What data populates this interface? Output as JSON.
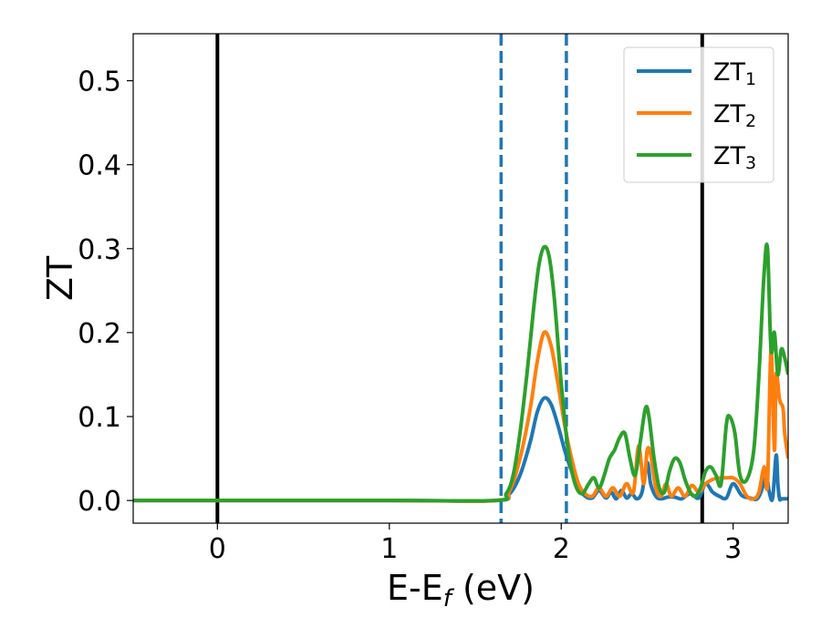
{
  "chart_data": {
    "type": "line",
    "xlabel": "E-E",
    "xlabel_sub": "f",
    "xlabel_unit": " (eV)",
    "ylabel": "ZT",
    "xlim": [
      -0.49,
      3.32
    ],
    "ylim": [
      -0.027,
      0.556
    ],
    "xticks": [
      0,
      1,
      2,
      3
    ],
    "xtick_labels": [
      "0",
      "1",
      "2",
      "3"
    ],
    "yticks": [
      0.0,
      0.1,
      0.2,
      0.3,
      0.4,
      0.5
    ],
    "ytick_labels": [
      "0.0",
      "0.1",
      "0.2",
      "0.3",
      "0.4",
      "0.5"
    ],
    "grid": false,
    "legend_position": "top-right",
    "vlines": [
      {
        "x": 0.0,
        "style": "solid",
        "color": "#000000"
      },
      {
        "x": 1.65,
        "style": "dashed",
        "color": "#1f77b4"
      },
      {
        "x": 2.03,
        "style": "dashed",
        "color": "#1f77b4"
      },
      {
        "x": 2.82,
        "style": "solid",
        "color": "#000000"
      }
    ],
    "series": [
      {
        "name": "ZT",
        "name_sub": "1",
        "color": "#1f77b4",
        "x": [
          -0.49,
          1.0,
          1.62,
          1.7,
          1.76,
          1.82,
          1.86,
          1.9,
          1.94,
          1.98,
          2.02,
          2.06,
          2.1,
          2.14,
          2.18,
          2.22,
          2.26,
          2.29,
          2.32,
          2.35,
          2.38,
          2.41,
          2.44,
          2.47,
          2.5,
          2.52,
          2.55,
          2.58,
          2.62,
          2.66,
          2.7,
          2.75,
          2.8,
          2.84,
          2.88,
          2.92,
          2.96,
          3.0,
          3.05,
          3.1,
          3.14,
          3.17,
          3.19,
          3.21,
          3.23,
          3.25,
          3.26,
          3.27,
          3.28,
          3.3,
          3.32
        ],
        "y": [
          0,
          0,
          0,
          0.008,
          0.03,
          0.07,
          0.105,
          0.122,
          0.115,
          0.09,
          0.06,
          0.035,
          0.015,
          0.005,
          0.003,
          0.012,
          0.003,
          0.01,
          0.002,
          0.012,
          0.003,
          0.008,
          0.002,
          0.01,
          0.045,
          0.02,
          0.005,
          0.002,
          0.004,
          0.004,
          0.002,
          0.008,
          0.003,
          0.02,
          0.01,
          0.005,
          0.003,
          0.02,
          0.006,
          0.003,
          0.002,
          0.015,
          0.035,
          0.01,
          0.003,
          0.054,
          0.02,
          0.002,
          0.002,
          0.002,
          0.002
        ]
      },
      {
        "name": "ZT",
        "name_sub": "2",
        "color": "#ff7f0e",
        "x": [
          -0.49,
          1.0,
          1.62,
          1.7,
          1.76,
          1.82,
          1.86,
          1.9,
          1.94,
          1.98,
          2.02,
          2.06,
          2.1,
          2.14,
          2.18,
          2.22,
          2.26,
          2.3,
          2.34,
          2.38,
          2.42,
          2.45,
          2.48,
          2.5,
          2.52,
          2.55,
          2.58,
          2.61,
          2.64,
          2.68,
          2.72,
          2.76,
          2.8,
          2.84,
          2.88,
          2.92,
          2.96,
          3.0,
          3.04,
          3.08,
          3.12,
          3.15,
          3.18,
          3.2,
          3.22,
          3.24,
          3.25,
          3.27,
          3.29,
          3.3,
          3.32
        ],
        "y": [
          0,
          0,
          0,
          0.012,
          0.05,
          0.11,
          0.165,
          0.2,
          0.185,
          0.14,
          0.09,
          0.05,
          0.02,
          0.008,
          0.005,
          0.015,
          0.005,
          0.015,
          0.005,
          0.02,
          0.01,
          0.065,
          0.02,
          0.06,
          0.055,
          0.015,
          0.005,
          0.02,
          0.005,
          0.015,
          0.005,
          0.018,
          0.01,
          0.02,
          0.025,
          0.027,
          0.027,
          0.027,
          0.02,
          0.005,
          0.002,
          0.01,
          0.04,
          0.02,
          0.18,
          0.06,
          0.15,
          0.12,
          0.11,
          0.08,
          0.05
        ]
      },
      {
        "name": "ZT",
        "name_sub": "3",
        "color": "#2ca02c",
        "x": [
          -0.49,
          1.0,
          1.62,
          1.68,
          1.72,
          1.76,
          1.8,
          1.84,
          1.87,
          1.9,
          1.93,
          1.96,
          2.0,
          2.04,
          2.08,
          2.12,
          2.16,
          2.19,
          2.22,
          2.25,
          2.28,
          2.31,
          2.34,
          2.37,
          2.4,
          2.43,
          2.46,
          2.49,
          2.51,
          2.54,
          2.57,
          2.6,
          2.63,
          2.66,
          2.69,
          2.72,
          2.75,
          2.78,
          2.81,
          2.84,
          2.87,
          2.9,
          2.93,
          2.96,
          2.98,
          3.01,
          3.04,
          3.08,
          3.12,
          3.15,
          3.18,
          3.2,
          3.22,
          3.24,
          3.26,
          3.28,
          3.3,
          3.32
        ],
        "y": [
          0,
          0,
          0,
          0.008,
          0.03,
          0.08,
          0.15,
          0.23,
          0.28,
          0.302,
          0.29,
          0.24,
          0.14,
          0.06,
          0.02,
          0.008,
          0.02,
          0.027,
          0.015,
          0.03,
          0.05,
          0.06,
          0.075,
          0.08,
          0.05,
          0.03,
          0.07,
          0.11,
          0.1,
          0.05,
          0.015,
          0.01,
          0.035,
          0.05,
          0.045,
          0.025,
          0.01,
          0.005,
          0.015,
          0.035,
          0.04,
          0.03,
          0.02,
          0.09,
          0.1,
          0.08,
          0.03,
          0.025,
          0.06,
          0.15,
          0.27,
          0.3,
          0.18,
          0.2,
          0.15,
          0.18,
          0.17,
          0.15
        ]
      }
    ]
  }
}
